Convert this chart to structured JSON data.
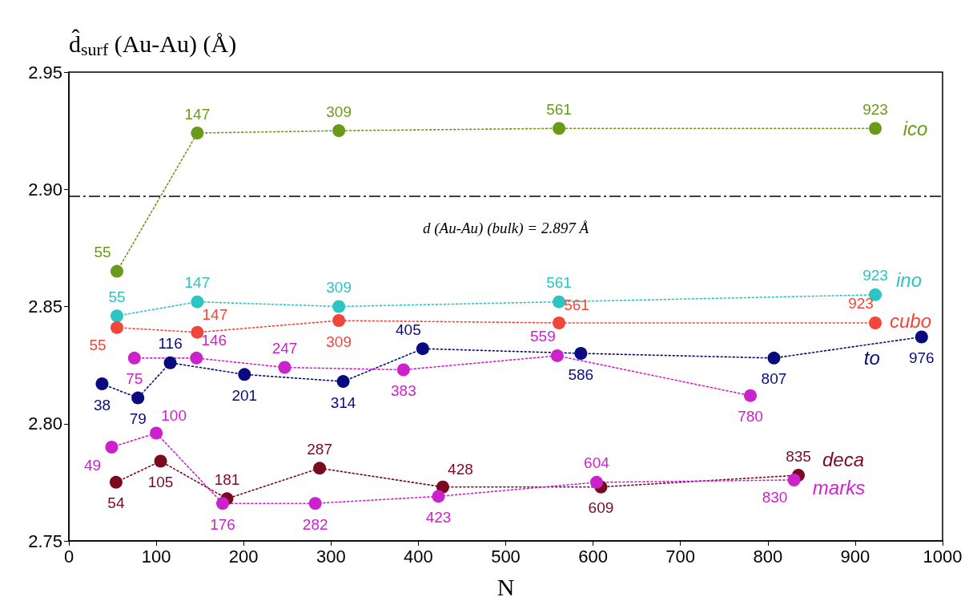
{
  "chart_data": {
    "type": "line",
    "ylabel": "d̂$_{surf}$ (Au-Au) (Å)",
    "xlabel": "N",
    "xlim": [
      0,
      1000
    ],
    "xticks": [
      0,
      100,
      200,
      300,
      400,
      500,
      600,
      700,
      800,
      900,
      1000
    ],
    "ylim": [
      2.75,
      2.95
    ],
    "yticks": [
      2.75,
      {
        "value": 2.8,
        "label": "2.80"
      },
      2.85,
      {
        "value": 2.9,
        "label": "2.90"
      },
      2.95
    ],
    "grid": false,
    "legend": false,
    "marker": "circle",
    "line_style": "dotted",
    "ref_lines": [
      {
        "axis": "y",
        "value": 2.897,
        "label": "d (Au-Au) (bulk) = 2.897 Å",
        "color": "#000000",
        "line_style": "dashed"
      }
    ],
    "series": [
      {
        "name": "ico",
        "color": "#6a9a1a",
        "x": [
          55,
          147,
          309,
          561,
          923
        ],
        "values": [
          2.865,
          2.924,
          2.925,
          2.926,
          2.926
        ]
      },
      {
        "name": "ino",
        "color": "#2ec4c4",
        "x": [
          55,
          147,
          309,
          561,
          923
        ],
        "values": [
          2.846,
          2.852,
          2.85,
          2.852,
          2.855
        ]
      },
      {
        "name": "cubo",
        "color": "#f0463c",
        "x": [
          55,
          147,
          309,
          561,
          923
        ],
        "values": [
          2.841,
          2.839,
          2.844,
          2.843,
          2.843
        ]
      },
      {
        "name": "to",
        "color": "#0a0a80",
        "x": [
          38,
          79,
          116,
          201,
          314,
          405,
          586,
          807,
          976
        ],
        "values": [
          2.817,
          2.811,
          2.826,
          2.821,
          2.818,
          2.832,
          2.83,
          2.828,
          2.837
        ]
      },
      {
        "color": "#cc22cc",
        "x": [
          75,
          146,
          247,
          383,
          559,
          780
        ],
        "values": [
          2.828,
          2.828,
          2.824,
          2.823,
          2.829,
          2.812
        ]
      },
      {
        "name": "deca",
        "color": "#7a0a20",
        "x": [
          54,
          105,
          181,
          287,
          428,
          609,
          835
        ],
        "values": [
          2.775,
          2.784,
          2.768,
          2.781,
          2.773,
          2.773,
          2.778
        ]
      },
      {
        "name": "marks",
        "color": "#cc22cc",
        "x": [
          49,
          100,
          176,
          282,
          423,
          604,
          830
        ],
        "values": [
          2.79,
          2.796,
          2.766,
          2.766,
          2.769,
          2.775,
          2.776
        ]
      }
    ],
    "annotations": [
      {
        "text": "55",
        "x": 55,
        "y": 2.865
      },
      {
        "text": "147",
        "x": 147,
        "y": 2.924
      },
      {
        "text": "309",
        "x": 309,
        "y": 2.925
      },
      {
        "text": "561",
        "x": 561,
        "y": 2.926
      },
      {
        "text": "923",
        "x": 923,
        "y": 2.926
      },
      {
        "text": "55",
        "x": 55,
        "y": 2.846
      },
      {
        "text": "147",
        "x": 147,
        "y": 2.852
      },
      {
        "text": "309",
        "x": 309,
        "y": 2.85
      },
      {
        "text": "561",
        "x": 561,
        "y": 2.852
      },
      {
        "text": "923",
        "x": 923,
        "y": 2.855
      },
      {
        "text": "55",
        "x": 55,
        "y": 2.841
      },
      {
        "text": "147",
        "x": 147,
        "y": 2.839
      },
      {
        "text": "309",
        "x": 309,
        "y": 2.844
      },
      {
        "text": "561",
        "x": 561,
        "y": 2.843
      },
      {
        "text": "923",
        "x": 923,
        "y": 2.843
      },
      {
        "text": "38",
        "x": 38,
        "y": 2.817
      },
      {
        "text": "79",
        "x": 79,
        "y": 2.811
      },
      {
        "text": "116",
        "x": 116,
        "y": 2.826
      },
      {
        "text": "201",
        "x": 201,
        "y": 2.821
      },
      {
        "text": "314",
        "x": 314,
        "y": 2.818
      },
      {
        "text": "405",
        "x": 405,
        "y": 2.832
      },
      {
        "text": "586",
        "x": 586,
        "y": 2.83
      },
      {
        "text": "807",
        "x": 807,
        "y": 2.828
      },
      {
        "text": "976",
        "x": 976,
        "y": 2.837
      },
      {
        "text": "75",
        "x": 75,
        "y": 2.828
      },
      {
        "text": "146",
        "x": 146,
        "y": 2.828
      },
      {
        "text": "247",
        "x": 247,
        "y": 2.824
      },
      {
        "text": "383",
        "x": 383,
        "y": 2.823
      },
      {
        "text": "559",
        "x": 559,
        "y": 2.829
      },
      {
        "text": "780",
        "x": 780,
        "y": 2.812
      },
      {
        "text": "54",
        "x": 54,
        "y": 2.775
      },
      {
        "text": "105",
        "x": 105,
        "y": 2.784
      },
      {
        "text": "181",
        "x": 181,
        "y": 2.768
      },
      {
        "text": "287",
        "x": 287,
        "y": 2.781
      },
      {
        "text": "428",
        "x": 428,
        "y": 2.773
      },
      {
        "text": "609",
        "x": 609,
        "y": 2.773
      },
      {
        "text": "835",
        "x": 835,
        "y": 2.778
      },
      {
        "text": "49",
        "x": 49,
        "y": 2.79
      },
      {
        "text": "100",
        "x": 100,
        "y": 2.796
      },
      {
        "text": "176",
        "x": 176,
        "y": 2.766
      },
      {
        "text": "282",
        "x": 282,
        "y": 2.766
      },
      {
        "text": "423",
        "x": 423,
        "y": 2.769
      },
      {
        "text": "604",
        "x": 604,
        "y": 2.775
      },
      {
        "text": "830",
        "x": 830,
        "y": 2.776
      }
    ]
  }
}
